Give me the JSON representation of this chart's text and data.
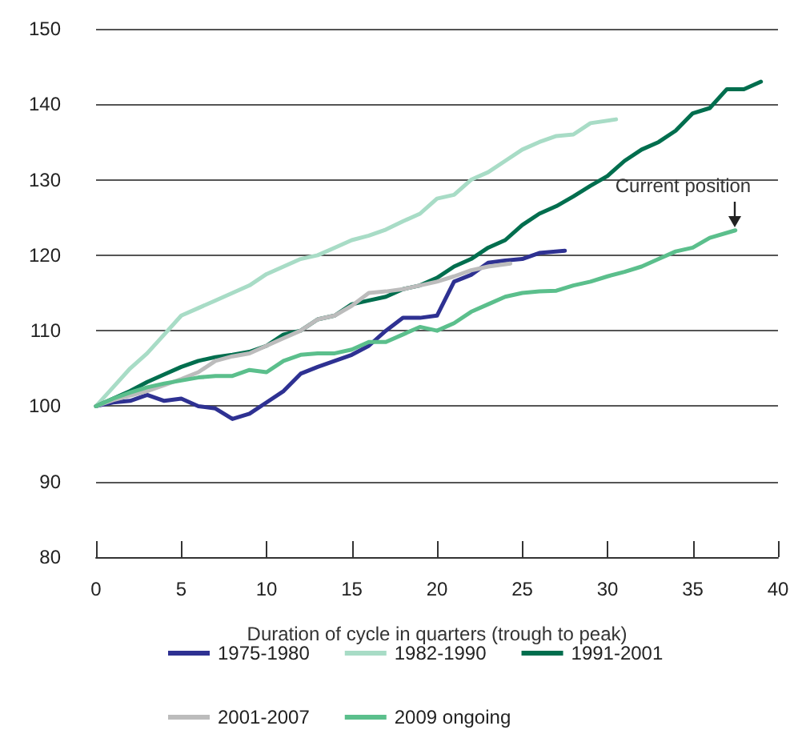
{
  "chart_data": {
    "type": "line",
    "xlabel": "Duration of cycle in quarters (trough to peak)",
    "xlim": [
      0,
      40
    ],
    "xticks": [
      0,
      5,
      10,
      15,
      20,
      25,
      30,
      35,
      40
    ],
    "ylim": [
      80,
      150
    ],
    "yticks": [
      80,
      90,
      100,
      110,
      120,
      130,
      140,
      150
    ],
    "grid": "y",
    "legend": "bottom",
    "marker": "none",
    "line_style": "solid",
    "annotations": [
      {
        "text": "Current position",
        "x": 37.5,
        "y": 123.3
      }
    ],
    "series": [
      {
        "name": "1975-1980",
        "color": "#2e3192",
        "x": [
          0,
          1,
          2,
          3,
          4,
          5,
          6,
          7,
          8,
          9,
          10,
          11,
          12,
          13,
          14,
          15,
          16,
          17,
          18,
          19,
          20,
          21,
          22,
          23,
          24,
          25,
          26,
          27.5
        ],
        "values": [
          100,
          100.5,
          100.7,
          101.5,
          100.7,
          101,
          100,
          99.7,
          98.3,
          99,
          100.5,
          102,
          104.3,
          105.2,
          106,
          106.8,
          108,
          110,
          111.7,
          111.7,
          112,
          116.5,
          117.4,
          119,
          119.3,
          119.5,
          120.3,
          120.6
        ]
      },
      {
        "name": "1982-1990",
        "color": "#a8dcc6",
        "x": [
          0,
          1,
          2,
          3,
          4,
          5,
          6,
          7,
          8,
          9,
          10,
          11,
          12,
          13,
          14,
          15,
          16,
          17,
          18,
          19,
          20,
          21,
          22,
          23,
          24,
          25,
          26,
          27,
          28,
          29,
          30.5
        ],
        "values": [
          100,
          102.5,
          105,
          107,
          109.5,
          112,
          113,
          114,
          115,
          116,
          117.5,
          118.5,
          119.5,
          120,
          121,
          122,
          122.6,
          123.4,
          124.5,
          125.5,
          127.5,
          128,
          130,
          131,
          132.5,
          134,
          135,
          135.8,
          136,
          137.5,
          138
        ]
      },
      {
        "name": "1991-2001",
        "color": "#006e4e",
        "x": [
          0,
          1,
          2,
          3,
          4,
          5,
          6,
          7,
          8,
          9,
          10,
          11,
          12,
          13,
          14,
          15,
          16,
          17,
          18,
          19,
          20,
          21,
          22,
          23,
          24,
          25,
          26,
          27,
          28,
          29,
          30,
          31,
          32,
          33,
          34,
          35,
          36,
          37,
          38,
          39
        ],
        "values": [
          100,
          101,
          102,
          103.2,
          104.2,
          105.2,
          106,
          106.5,
          106.8,
          107.2,
          108,
          109.5,
          110,
          111.5,
          112,
          113.5,
          114,
          114.5,
          115.5,
          116,
          117,
          118.5,
          119.5,
          121,
          122,
          124,
          125.5,
          126.5,
          127.8,
          129.2,
          130.5,
          132.5,
          134,
          135,
          136.5,
          138.8,
          139.5,
          142,
          142,
          143
        ]
      },
      {
        "name": "2001-2007",
        "color": "#bcbcbc",
        "x": [
          0,
          1,
          2,
          3,
          4,
          5,
          6,
          7,
          8,
          9,
          10,
          11,
          12,
          13,
          14,
          15,
          16,
          17,
          18,
          19,
          20,
          21,
          22,
          23,
          24.3
        ],
        "values": [
          100,
          100.8,
          101.4,
          102,
          102.8,
          103.6,
          104.5,
          106,
          106.6,
          107,
          108,
          109,
          110,
          111.5,
          112,
          113.3,
          115,
          115.2,
          115.5,
          116,
          116.5,
          117.2,
          118,
          118.5,
          118.9
        ]
      },
      {
        "name": "2009 ongoing",
        "color": "#5bbf8c",
        "x": [
          0,
          1,
          2,
          3,
          4,
          5,
          6,
          7,
          8,
          9,
          10,
          11,
          12,
          13,
          14,
          15,
          16,
          17,
          18,
          19,
          20,
          21,
          22,
          23,
          24,
          25,
          26,
          27,
          28,
          29,
          30,
          31,
          32,
          33,
          34,
          35,
          36,
          37.5
        ],
        "values": [
          100,
          101,
          101.8,
          102.5,
          103,
          103.4,
          103.8,
          104,
          104,
          104.8,
          104.5,
          106,
          106.8,
          107,
          107,
          107.5,
          108.5,
          108.5,
          109.5,
          110.5,
          110,
          111,
          112.5,
          113.5,
          114.5,
          115,
          115.2,
          115.3,
          116,
          116.5,
          117.2,
          117.8,
          118.5,
          119.5,
          120.5,
          121,
          122.3,
          123.3
        ]
      }
    ]
  }
}
